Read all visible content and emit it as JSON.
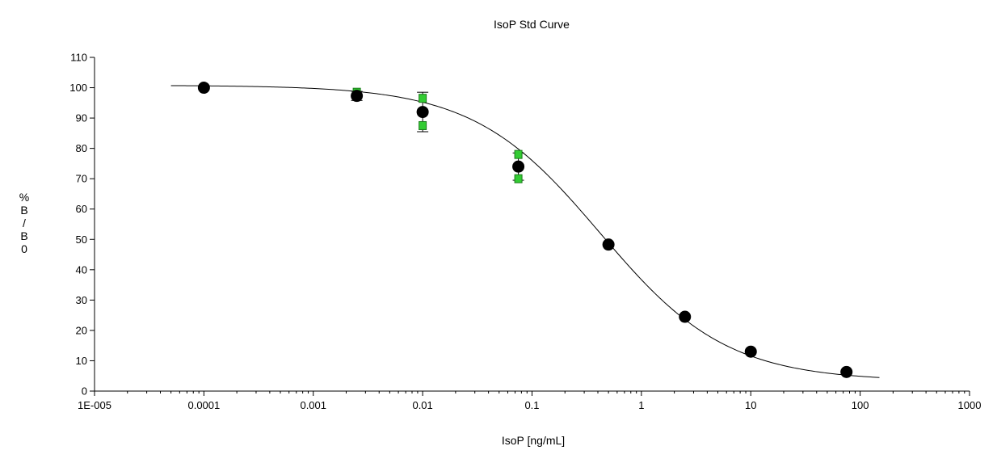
{
  "chart_data": {
    "type": "scatter",
    "title": "IsoP Std Curve",
    "xlabel": "IsoP [ng/mL]",
    "ylabel": "%B/B0",
    "x_scale": "log",
    "xlim": [
      1e-05,
      1000
    ],
    "ylim": [
      0,
      110
    ],
    "x_ticks": [
      1e-05,
      0.0001,
      0.001,
      0.01,
      0.1,
      1,
      10,
      100,
      1000
    ],
    "x_tick_labels": [
      "1E-005",
      "0.0001",
      "0.001",
      "0.01",
      "0.1",
      "1",
      "10",
      "100",
      "1000"
    ],
    "y_ticks": [
      0,
      10,
      20,
      30,
      40,
      50,
      60,
      70,
      80,
      90,
      100,
      110
    ],
    "y_tick_labels": [
      "0",
      "10",
      "20",
      "30",
      "40",
      "50",
      "60",
      "70",
      "80",
      "90",
      "100",
      "110"
    ],
    "grid": false,
    "legend": "none",
    "series": [
      {
        "marker": "black-circle",
        "color": "#000000",
        "x": [
          0.0001,
          0.0025,
          0.01,
          0.075,
          0.5,
          2.5,
          10,
          75
        ],
        "y": [
          100,
          97.3,
          92,
          74,
          48.3,
          24.5,
          13,
          6.3
        ],
        "error_bars": [
          0,
          1.5,
          6.5,
          4.5,
          0,
          0,
          0,
          0
        ]
      },
      {
        "marker": "green-square",
        "color": "#33cc33",
        "x": [
          0.0025,
          0.01,
          0.01,
          0.075,
          0.075
        ],
        "y": [
          98.5,
          96.5,
          87.5,
          78,
          70
        ]
      }
    ],
    "fit_curve": {
      "type": "4PL",
      "color": "#000000",
      "x_range": [
        5e-05,
        150
      ]
    }
  }
}
